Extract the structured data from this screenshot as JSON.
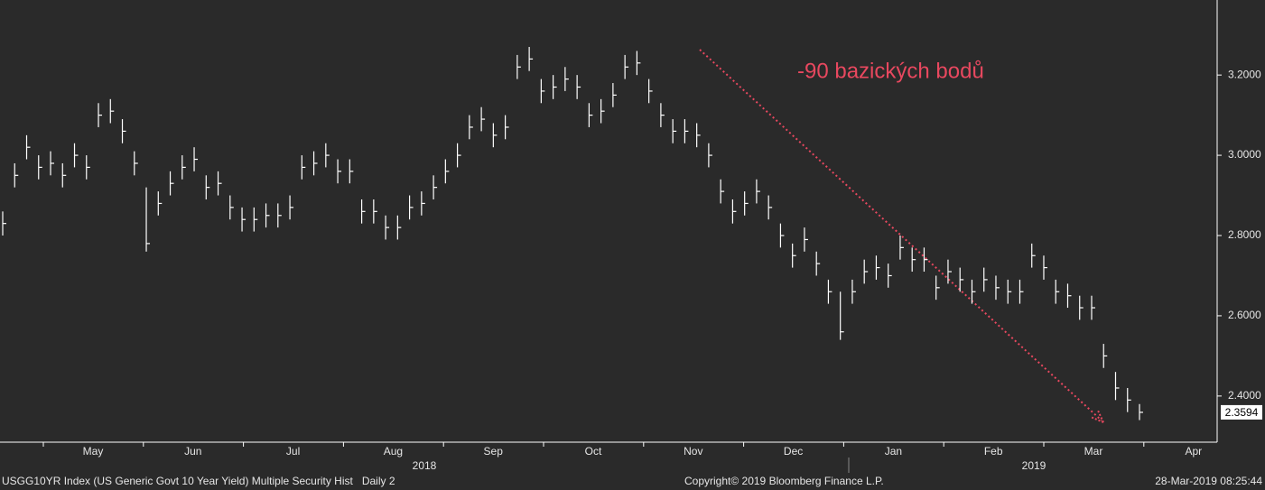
{
  "chart_data": {
    "type": "ohlc",
    "annotation": "-90 bazických bodů",
    "color": "#ffffff",
    "annotation_color": "#e8485f",
    "high": [
      2.86,
      2.98,
      3.05,
      3.0,
      3.01,
      2.98,
      3.03,
      3.0,
      3.13,
      3.14,
      3.09,
      3.01,
      2.92,
      2.91,
      2.96,
      3.0,
      3.02,
      2.95,
      2.96,
      2.9,
      2.87,
      2.87,
      2.88,
      2.88,
      2.9,
      3.0,
      3.01,
      3.03,
      2.99,
      2.99,
      2.89,
      2.89,
      2.85,
      2.85,
      2.9,
      2.91,
      2.95,
      2.99,
      3.03,
      3.1,
      3.12,
      3.08,
      3.1,
      3.25,
      3.27,
      3.19,
      3.2,
      3.22,
      3.2,
      3.13,
      3.14,
      3.18,
      3.25,
      3.26,
      3.19,
      3.13,
      3.09,
      3.09,
      3.08,
      3.03,
      2.94,
      2.89,
      2.91,
      2.94,
      2.9,
      2.83,
      2.78,
      2.82,
      2.76,
      2.69,
      2.66,
      2.69,
      2.74,
      2.75,
      2.73,
      2.8,
      2.77,
      2.77,
      2.7,
      2.74,
      2.72,
      2.69,
      2.72,
      2.7,
      2.69,
      2.69,
      2.78,
      2.75,
      2.69,
      2.68,
      2.65,
      2.65,
      2.53,
      2.46,
      2.42,
      2.38
    ],
    "low": [
      2.8,
      2.92,
      2.99,
      2.94,
      2.95,
      2.92,
      2.97,
      2.94,
      3.07,
      3.08,
      3.03,
      2.95,
      2.76,
      2.85,
      2.9,
      2.94,
      2.96,
      2.89,
      2.9,
      2.84,
      2.81,
      2.81,
      2.82,
      2.82,
      2.84,
      2.94,
      2.95,
      2.97,
      2.93,
      2.93,
      2.83,
      2.83,
      2.79,
      2.79,
      2.84,
      2.85,
      2.89,
      2.93,
      2.97,
      3.04,
      3.06,
      3.02,
      3.04,
      3.19,
      3.21,
      3.13,
      3.14,
      3.16,
      3.14,
      3.07,
      3.08,
      3.12,
      3.19,
      3.2,
      3.13,
      3.07,
      3.03,
      3.03,
      3.02,
      2.97,
      2.88,
      2.83,
      2.85,
      2.88,
      2.84,
      2.77,
      2.72,
      2.76,
      2.7,
      2.63,
      2.54,
      2.63,
      2.68,
      2.69,
      2.67,
      2.74,
      2.71,
      2.71,
      2.64,
      2.68,
      2.66,
      2.63,
      2.66,
      2.64,
      2.63,
      2.63,
      2.72,
      2.69,
      2.63,
      2.62,
      2.59,
      2.59,
      2.47,
      2.39,
      2.36,
      2.34
    ],
    "close": [
      2.83,
      2.95,
      3.02,
      2.97,
      2.98,
      2.95,
      3.0,
      2.97,
      3.1,
      3.11,
      3.06,
      2.98,
      2.78,
      2.88,
      2.93,
      2.97,
      2.99,
      2.92,
      2.93,
      2.87,
      2.84,
      2.84,
      2.85,
      2.85,
      2.87,
      2.97,
      2.98,
      3.0,
      2.96,
      2.96,
      2.86,
      2.86,
      2.82,
      2.82,
      2.87,
      2.88,
      2.92,
      2.96,
      3.0,
      3.07,
      3.09,
      3.05,
      3.07,
      3.22,
      3.24,
      3.16,
      3.17,
      3.19,
      3.17,
      3.1,
      3.11,
      3.15,
      3.22,
      3.23,
      3.16,
      3.1,
      3.06,
      3.06,
      3.05,
      3.0,
      2.91,
      2.86,
      2.88,
      2.91,
      2.87,
      2.8,
      2.75,
      2.79,
      2.73,
      2.66,
      2.56,
      2.66,
      2.71,
      2.72,
      2.7,
      2.77,
      2.74,
      2.74,
      2.67,
      2.71,
      2.69,
      2.66,
      2.69,
      2.67,
      2.66,
      2.66,
      2.75,
      2.72,
      2.66,
      2.65,
      2.62,
      2.62,
      2.5,
      2.42,
      2.39,
      2.3594
    ],
    "month_labels": [
      "May",
      "Jun",
      "Jul",
      "Aug",
      "Sep",
      "Oct",
      "Nov",
      "Dec",
      "Jan",
      "Feb",
      "Mar",
      "Apr"
    ],
    "year_labels": [
      "2018",
      "2019"
    ],
    "ylim": [
      2.285,
      3.387
    ],
    "yticks": [
      {
        "value": 2.4,
        "label": "2.4000"
      },
      {
        "value": 2.6,
        "label": "2.6000"
      },
      {
        "value": 2.8,
        "label": "2.8000"
      },
      {
        "value": 3.0,
        "label": "3.0000"
      },
      {
        "value": 3.2,
        "label": "3.2000"
      }
    ]
  },
  "footer": {
    "left": "USGG10YR Index (US Generic Govt 10 Year Yield) Multiple Security Hist   Daily 2",
    "center": "Copyright© 2019 Bloomberg Finance L.P.",
    "right": "28-Mar-2019 08:25:44"
  }
}
